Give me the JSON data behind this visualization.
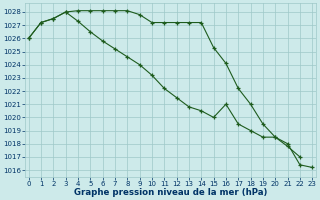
{
  "line1_x": [
    0,
    1,
    2,
    3,
    4,
    5,
    6,
    7,
    8,
    9,
    10,
    11,
    12,
    13,
    14,
    15,
    16,
    17,
    18,
    19,
    20,
    21,
    22
  ],
  "line1_y": [
    1026.0,
    1027.2,
    1027.5,
    1028.0,
    1028.1,
    1028.1,
    1028.1,
    1028.1,
    1028.1,
    1027.8,
    1027.2,
    1027.2,
    1027.2,
    1027.2,
    1027.2,
    1025.3,
    1024.1,
    1022.2,
    1021.0,
    1019.5,
    1018.5,
    1017.8,
    1017.0
  ],
  "line2_x": [
    0,
    1,
    2,
    3,
    4,
    5,
    6,
    7,
    8,
    9,
    10,
    11,
    12,
    13,
    14,
    15,
    16,
    17,
    18,
    19,
    20,
    21,
    22,
    23
  ],
  "line2_y": [
    1026.0,
    1027.2,
    1027.5,
    1028.0,
    1027.3,
    1026.5,
    1025.8,
    1025.2,
    1024.6,
    1024.0,
    1023.2,
    1022.2,
    1021.5,
    1020.8,
    1020.5,
    1020.0,
    1021.0,
    1019.5,
    1019.0,
    1018.5,
    1018.5,
    1018.0,
    1016.4,
    1016.2
  ],
  "yticks": [
    1016,
    1017,
    1018,
    1019,
    1020,
    1021,
    1022,
    1023,
    1024,
    1025,
    1026,
    1027,
    1028
  ],
  "xticks": [
    0,
    1,
    2,
    3,
    4,
    5,
    6,
    7,
    8,
    9,
    10,
    11,
    12,
    13,
    14,
    15,
    16,
    17,
    18,
    19,
    20,
    21,
    22,
    23
  ],
  "xlabel": "Graphe pression niveau de la mer (hPa)",
  "background_color": "#cdeaea",
  "grid_color": "#9ec8c8",
  "line_color": "#1e5c1e",
  "text_color": "#003366",
  "tick_fontsize": 5.0,
  "label_fontsize": 6.2
}
